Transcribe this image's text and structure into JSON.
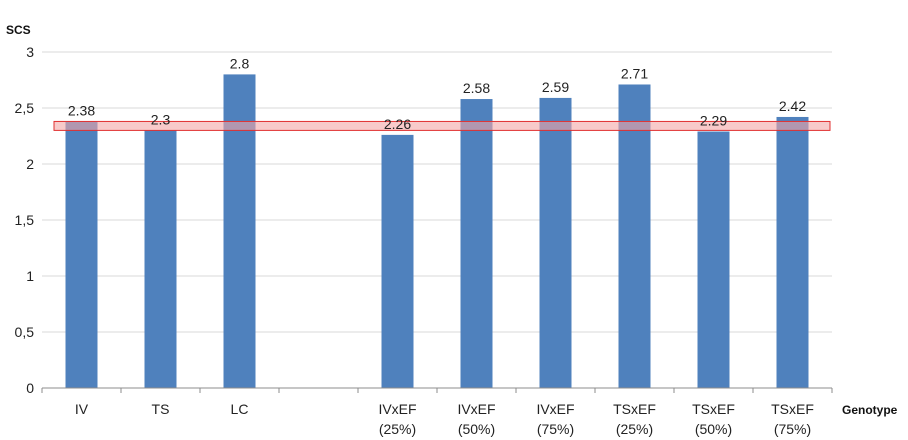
{
  "chart_data": {
    "type": "bar",
    "title": "",
    "xlabel": "Genotype",
    "ylabel": "SCS",
    "ylim": [
      0,
      3
    ],
    "yticks": [
      "0",
      "0,5",
      "1",
      "1,5",
      "2",
      "2,5",
      "3"
    ],
    "grid": true,
    "legend": "none",
    "categories": [
      [
        "IV"
      ],
      [
        "TS"
      ],
      [
        "LC"
      ],
      [
        ""
      ],
      [
        "IVxEF",
        "(25%)"
      ],
      [
        "IVxEF",
        "(50%)"
      ],
      [
        "IVxEF",
        "(75%)"
      ],
      [
        "TSxEF",
        "(25%)"
      ],
      [
        "TSxEF",
        "(50%)"
      ],
      [
        "TSxEF",
        "(75%)"
      ]
    ],
    "values": [
      2.38,
      2.3,
      2.8,
      null,
      2.26,
      2.58,
      2.59,
      2.71,
      2.29,
      2.42
    ],
    "data_labels": [
      "2.38",
      "2.3",
      "2.8",
      "",
      "2.26",
      "2.58",
      "2.59",
      "2.71",
      "2.29",
      "2.42"
    ],
    "reference_band": {
      "low": 2.3,
      "high": 2.38
    },
    "colors": {
      "bar": "#4f81bd",
      "band_fill": "#f4a6a6",
      "band_stroke": "#e03030",
      "grid": "#d9d9d9",
      "axis": "#8c8c8c"
    }
  }
}
